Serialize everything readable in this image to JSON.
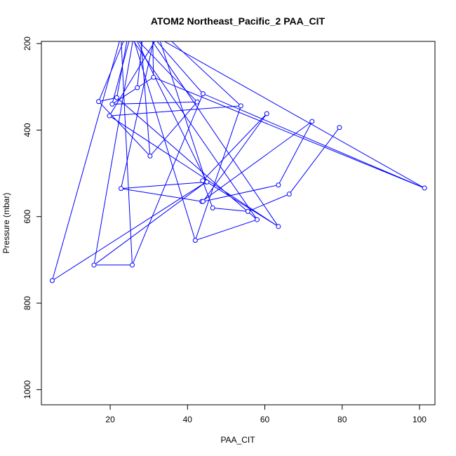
{
  "chart_data": {
    "type": "line",
    "title": "ATOM2 Northeast_Pacific_2 PAA_CIT",
    "xlabel": "PAA_CIT",
    "ylabel": "Pressure (mbar)",
    "xlim": [
      2.2,
      104.0
    ],
    "ylim": [
      1035,
      195
    ],
    "y_reversed": true,
    "x_ticks": [
      20,
      40,
      60,
      80,
      100
    ],
    "y_ticks": [
      200,
      400,
      600,
      800,
      1000
    ],
    "grid": false,
    "legend": "none",
    "colors": {
      "series": "#0000ff",
      "axes": "#000000"
    },
    "series": [
      {
        "marker": "open-circle",
        "x": [
          5.0,
          44.8,
          15.8,
          25.7,
          44.0,
          101.3,
          31.2,
          27.0,
          20.5,
          42.5,
          30.3,
          17.0,
          21.7,
          58.0,
          42.0,
          53.8,
          19.8,
          63.5,
          45.0,
          22.8,
          43.7,
          72.2,
          63.5,
          44.0,
          60.5,
          43.9,
          46.5,
          55.6,
          66.3,
          79.3
        ],
        "y": [
          748,
          520,
          712,
          712,
          316,
          534,
          278,
          302,
          340,
          335,
          460,
          334,
          325,
          607,
          655,
          344,
          367,
          623,
          520,
          535,
          565,
          380,
          527,
          565,
          362,
          517,
          580,
          588,
          548,
          394
        ]
      }
    ],
    "off_scale_segments": [
      {
        "from": [
          5.0,
          748
        ],
        "to": [
          23.8,
          150
        ]
      },
      {
        "from": [
          44.8,
          520
        ],
        "to": [
          31.3,
          150
        ]
      },
      {
        "from": [
          15.8,
          712
        ],
        "to": [
          26.7,
          150
        ]
      },
      {
        "from": [
          25.7,
          712
        ],
        "to": [
          22.6,
          150
        ]
      },
      {
        "from": [
          44.0,
          316
        ],
        "to": [
          27.7,
          150
        ]
      },
      {
        "from": [
          101.3,
          534
        ],
        "to": [
          25.1,
          150
        ]
      },
      {
        "from": [
          31.2,
          278
        ],
        "to": [
          30.9,
          150
        ]
      },
      {
        "from": [
          27.0,
          302
        ],
        "to": [
          28.8,
          150
        ]
      },
      {
        "from": [
          20.5,
          340
        ],
        "to": [
          26.2,
          150
        ]
      },
      {
        "from": [
          42.5,
          335
        ],
        "to": [
          22.5,
          150
        ]
      },
      {
        "from": [
          30.3,
          460
        ],
        "to": [
          27.6,
          150
        ]
      },
      {
        "from": [
          17.0,
          334
        ],
        "to": [
          25.5,
          150
        ]
      },
      {
        "from": [
          21.7,
          325
        ],
        "to": [
          25.2,
          150
        ]
      },
      {
        "from": [
          58.0,
          607
        ],
        "to": [
          22.6,
          150
        ]
      },
      {
        "from": [
          42.0,
          655
        ],
        "to": [
          24.7,
          150
        ]
      },
      {
        "from": [
          53.8,
          344
        ],
        "to": [
          30.5,
          150
        ]
      },
      {
        "from": [
          19.8,
          367
        ],
        "to": [
          34.6,
          150
        ]
      },
      {
        "from": [
          63.5,
          623
        ],
        "to": [
          27.5,
          150
        ]
      },
      {
        "from": [
          45.0,
          520
        ],
        "to": [
          24.5,
          150
        ]
      },
      {
        "from": [
          22.8,
          535
        ],
        "to": [
          32.3,
          150
        ]
      }
    ]
  }
}
